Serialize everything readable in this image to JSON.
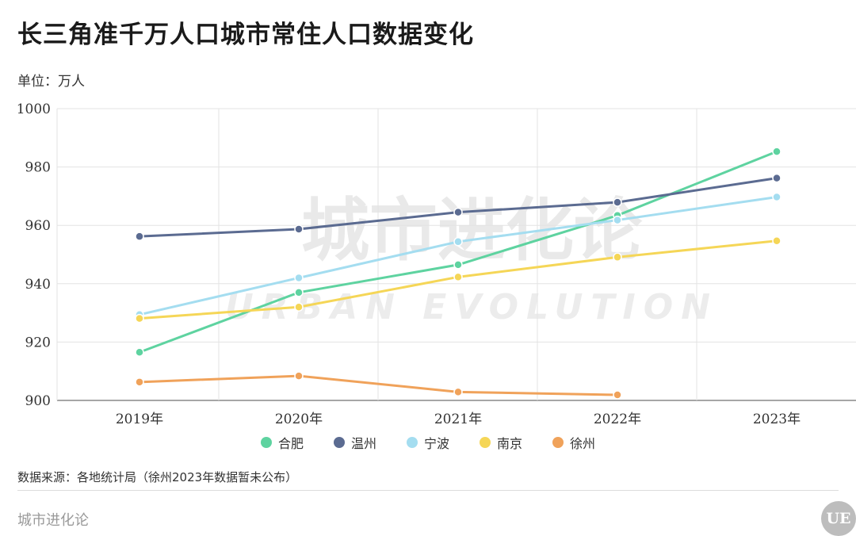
{
  "header": {
    "title": "长三角准千万人口城市常住人口数据变化",
    "unit": "单位：万人"
  },
  "watermark": {
    "cn": "城市进化论",
    "en": "URBAN EVOLUTION"
  },
  "chart_data": {
    "type": "line",
    "title": "长三角准千万人口城市常住人口数据变化",
    "ylabel": "单位：万人",
    "x": [
      "2019年",
      "2020年",
      "2021年",
      "2022年",
      "2023年"
    ],
    "ylim": [
      900,
      1000
    ],
    "yticks": [
      900,
      920,
      940,
      960,
      980,
      1000
    ],
    "grid": true,
    "legend_position": "bottom",
    "series": [
      {
        "name": "合肥",
        "color": "#5ed3a0",
        "values": [
          916.5,
          937.0,
          946.5,
          963.4,
          985.3
        ]
      },
      {
        "name": "温州",
        "color": "#5b6b91",
        "values": [
          956.2,
          958.7,
          964.5,
          967.9,
          976.2
        ]
      },
      {
        "name": "宁波",
        "color": "#a4ddf0",
        "values": [
          929.4,
          942.0,
          954.4,
          961.8,
          969.7
        ]
      },
      {
        "name": "南京",
        "color": "#f5d657",
        "values": [
          928.1,
          932.0,
          942.3,
          949.1,
          954.7
        ]
      },
      {
        "name": "徐州",
        "color": "#f0a25a",
        "values": [
          906.3,
          908.4,
          902.9,
          901.9,
          null
        ]
      }
    ]
  },
  "source": "数据来源：各地统计局（徐州2023年数据暂未公布）",
  "footer": {
    "brand": "城市进化论",
    "logo": "UE"
  }
}
